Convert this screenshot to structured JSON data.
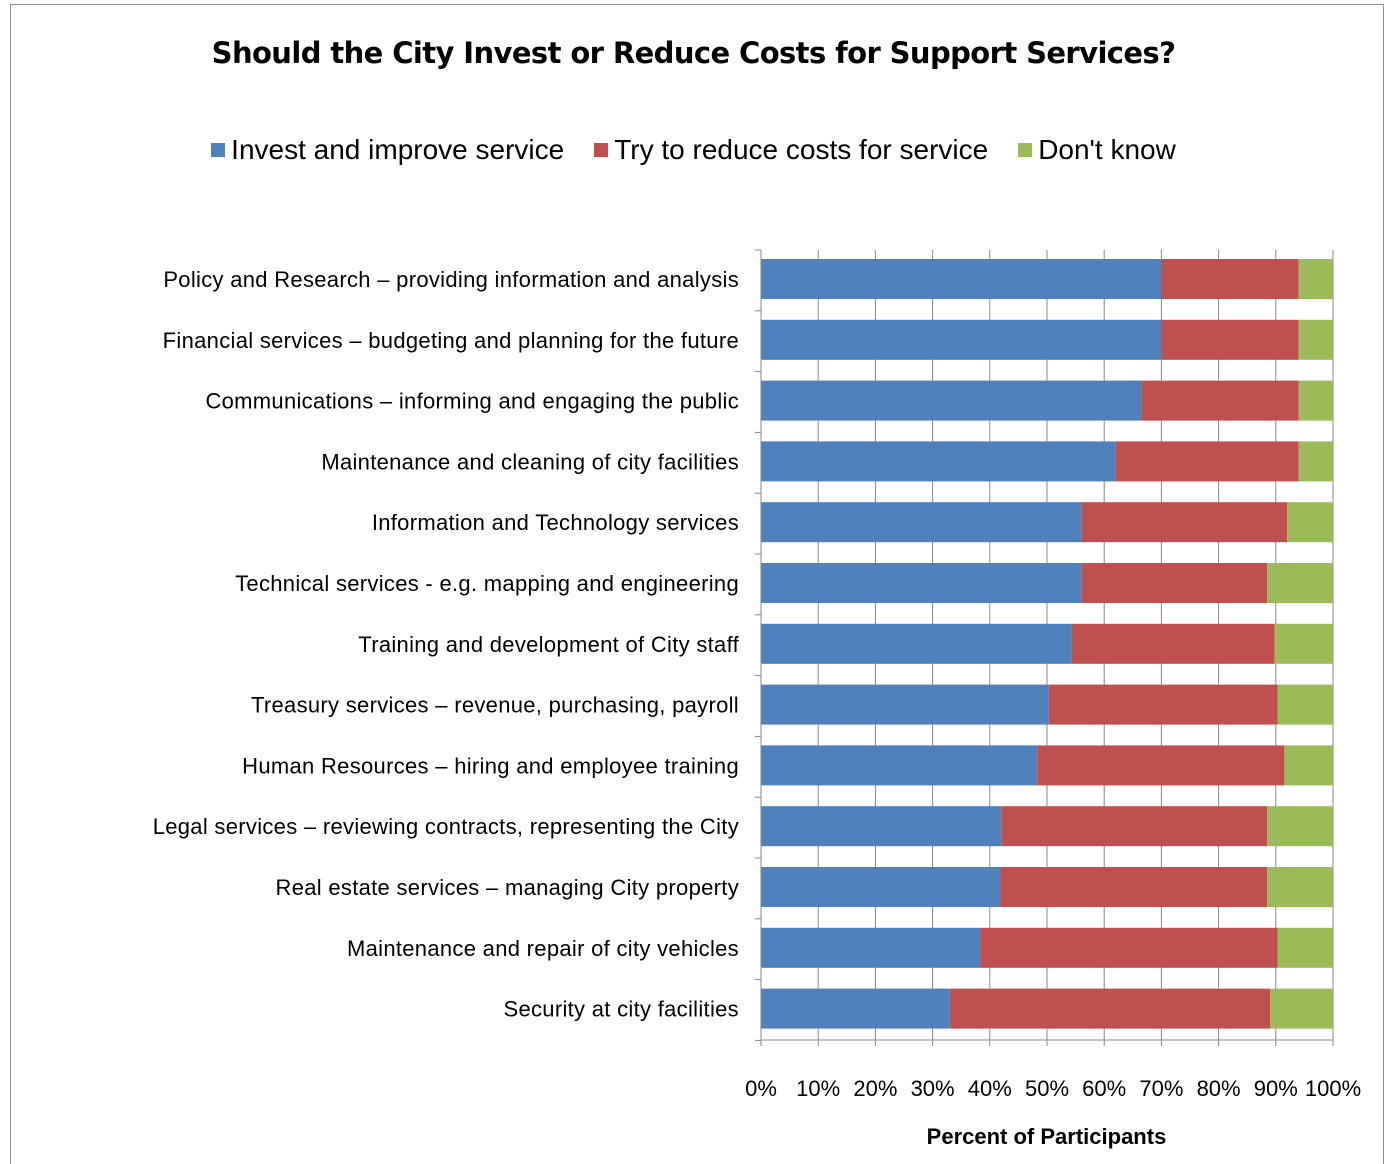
{
  "chart_data": {
    "type": "bar",
    "orientation": "horizontal",
    "stacked": true,
    "title": "Should the City Invest or Reduce Costs for Support Services?",
    "xlabel": "Percent of Participants",
    "ylabel": "",
    "xlim": [
      0,
      100
    ],
    "x_ticks": [
      "0%",
      "10%",
      "20%",
      "30%",
      "40%",
      "50%",
      "60%",
      "70%",
      "80%",
      "90%",
      "100%"
    ],
    "grid": "vertical",
    "legend_position": "top",
    "categories": [
      "Policy and Research – providing information and analysis",
      "Financial services – budgeting and planning for the future",
      "Communications – informing and engaging the public",
      "Maintenance and cleaning of city facilities",
      "Information and Technology services",
      "Technical services - e.g. mapping and engineering",
      "Training and development of City staff",
      "Treasury services – revenue, purchasing, payroll",
      "Human Resources – hiring and employee training",
      "Legal services – reviewing contracts, representing the City",
      "Real estate services – managing  City property",
      "Maintenance and repair of city vehicles",
      "Security at city facilities"
    ],
    "series": [
      {
        "name": "Invest and improve service",
        "color": "#4f81bd",
        "values": [
          70,
          70,
          66.5,
          62,
          56,
          56,
          54.3,
          50.3,
          48.3,
          42,
          41.8,
          38.3,
          33
        ]
      },
      {
        "name": "Try to reduce costs for service",
        "color": "#c0504d",
        "values": [
          24,
          24,
          27.5,
          32,
          36,
          32.5,
          35.5,
          40,
          43.2,
          46.5,
          46.7,
          52,
          56
        ]
      },
      {
        "name": "Don't know",
        "color": "#9bbb59",
        "values": [
          6,
          6,
          6,
          6,
          8,
          11.5,
          10.2,
          9.7,
          8.5,
          11.5,
          11.5,
          9.7,
          11
        ]
      }
    ]
  }
}
